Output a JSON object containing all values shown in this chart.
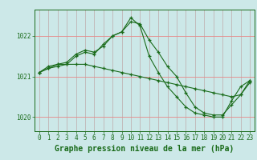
{
  "xlabel": "Graphe pression niveau de la mer (hPa)",
  "hours": [
    0,
    1,
    2,
    3,
    4,
    5,
    6,
    7,
    8,
    9,
    10,
    11,
    12,
    13,
    14,
    15,
    16,
    17,
    18,
    19,
    20,
    21,
    22,
    23
  ],
  "line1": [
    1021.1,
    1021.2,
    1021.3,
    1021.3,
    1021.5,
    1021.6,
    1021.55,
    1021.8,
    1022.0,
    1022.1,
    1022.35,
    1022.3,
    1021.9,
    1021.6,
    1021.25,
    1021.0,
    1020.6,
    1020.25,
    1020.1,
    1020.05,
    1020.05,
    1020.3,
    1020.55,
    1020.85
  ],
  "line2": [
    1021.1,
    1021.25,
    1021.3,
    1021.35,
    1021.55,
    1021.65,
    1021.6,
    1021.75,
    1022.0,
    1022.1,
    1022.45,
    1022.25,
    1021.5,
    1021.1,
    1020.75,
    1020.5,
    1020.25,
    1020.1,
    1020.05,
    1020.0,
    1020.0,
    1020.4,
    1020.75,
    1020.9
  ],
  "line3": [
    1021.1,
    1021.2,
    1021.25,
    1021.3,
    1021.3,
    1021.3,
    1021.25,
    1021.2,
    1021.15,
    1021.1,
    1021.05,
    1021.0,
    1020.95,
    1020.9,
    1020.85,
    1020.8,
    1020.75,
    1020.7,
    1020.65,
    1020.6,
    1020.55,
    1020.5,
    1020.55,
    1020.9
  ],
  "line_color": "#1a6b1a",
  "marker": "+",
  "markersize": 3,
  "linewidth": 0.8,
  "bg_color": "#cce8e8",
  "hgrid_color": "#e88888",
  "vgrid_color": "#bb9999",
  "ylim": [
    1019.65,
    1022.65
  ],
  "yticks": [
    1020,
    1021,
    1022
  ],
  "xlim": [
    -0.5,
    23.5
  ],
  "xticks": [
    0,
    1,
    2,
    3,
    4,
    5,
    6,
    7,
    8,
    9,
    10,
    11,
    12,
    13,
    14,
    15,
    16,
    17,
    18,
    19,
    20,
    21,
    22,
    23
  ],
  "tick_fontsize": 5.5,
  "label_fontsize": 7,
  "label_fontweight": "bold",
  "label_color": "#1a6b1a"
}
